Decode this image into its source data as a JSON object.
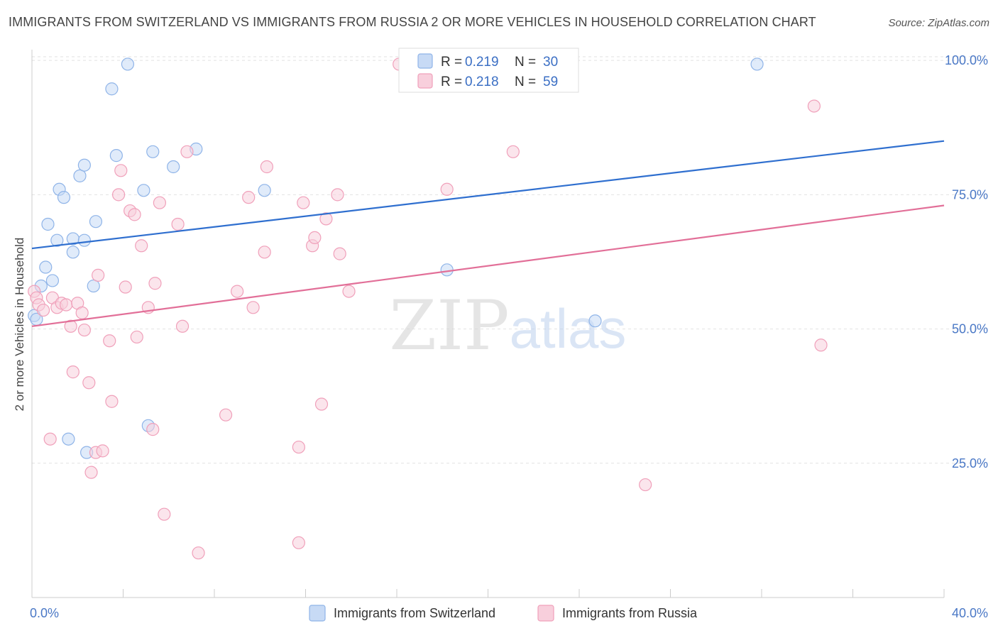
{
  "title": "IMMIGRANTS FROM SWITZERLAND VS IMMIGRANTS FROM RUSSIA 2 OR MORE VEHICLES IN HOUSEHOLD CORRELATION CHART",
  "source": "Source: ZipAtlas.com",
  "watermark": {
    "zip": "ZIP",
    "atlas": "atlas"
  },
  "chart_data": {
    "type": "scatter",
    "ylabel": "2 or more Vehicles in Household",
    "xlim": [
      0,
      40
    ],
    "ylim": [
      0,
      102
    ],
    "x_tick_labels": [
      {
        "value": 0,
        "label": "0.0%"
      },
      {
        "value": 40,
        "label": "40.0%"
      }
    ],
    "y_tick_labels": [
      {
        "value": 25,
        "label": "25.0%"
      },
      {
        "value": 50,
        "label": "50.0%"
      },
      {
        "value": 75,
        "label": "75.0%"
      },
      {
        "value": 100,
        "label": "100.0%"
      }
    ],
    "legend": {
      "entries": [
        {
          "r_label": "R = ",
          "r": "0.219",
          "n_label": "N = ",
          "n": "30",
          "color": "#8fb4e8",
          "fill": "#c7daf5"
        },
        {
          "r_label": "R = ",
          "r": "0.218",
          "n_label": "N = ",
          "n": "59",
          "color": "#f0a0ba",
          "fill": "#f8cfdc"
        }
      ]
    },
    "series": [
      {
        "name": "Immigrants from Switzerland",
        "color": "#8fb4e8",
        "fill": "#c7daf5",
        "line_color": "#2f6fcf",
        "trend": {
          "x0": 0,
          "y0": 65.0,
          "x1": 40,
          "y1": 85.0
        },
        "points": [
          [
            0.1,
            52.5
          ],
          [
            0.2,
            51.8
          ],
          [
            0.4,
            58.0
          ],
          [
            0.6,
            61.5
          ],
          [
            0.7,
            69.5
          ],
          [
            0.9,
            59.0
          ],
          [
            1.1,
            66.5
          ],
          [
            1.2,
            76.0
          ],
          [
            1.4,
            74.5
          ],
          [
            1.6,
            29.5
          ],
          [
            1.8,
            66.8
          ],
          [
            1.8,
            64.3
          ],
          [
            2.1,
            78.5
          ],
          [
            2.3,
            66.5
          ],
          [
            2.3,
            80.5
          ],
          [
            2.4,
            27.0
          ],
          [
            2.7,
            58.0
          ],
          [
            2.8,
            70.0
          ],
          [
            3.5,
            94.7
          ],
          [
            3.7,
            82.3
          ],
          [
            4.2,
            99.3
          ],
          [
            4.9,
            75.8
          ],
          [
            5.1,
            32.0
          ],
          [
            5.3,
            83.0
          ],
          [
            6.2,
            80.2
          ],
          [
            7.2,
            83.5
          ],
          [
            10.2,
            75.8
          ],
          [
            18.2,
            61.0
          ],
          [
            24.7,
            51.5
          ],
          [
            31.8,
            99.3
          ]
        ]
      },
      {
        "name": "Immigrants from Russia",
        "color": "#f0a0ba",
        "fill": "#f8cfdc",
        "line_color": "#e26f98",
        "trend": {
          "x0": 0,
          "y0": 50.5,
          "x1": 40,
          "y1": 73.0
        },
        "points": [
          [
            0.1,
            57.0
          ],
          [
            0.2,
            55.8
          ],
          [
            0.3,
            54.5
          ],
          [
            0.5,
            53.5
          ],
          [
            0.8,
            29.5
          ],
          [
            0.9,
            55.8
          ],
          [
            1.1,
            54.0
          ],
          [
            1.3,
            54.8
          ],
          [
            1.5,
            54.5
          ],
          [
            1.7,
            50.5
          ],
          [
            1.8,
            42.0
          ],
          [
            2.0,
            54.8
          ],
          [
            2.2,
            53.0
          ],
          [
            2.3,
            49.8
          ],
          [
            2.5,
            40.0
          ],
          [
            2.6,
            23.3
          ],
          [
            2.8,
            27.0
          ],
          [
            2.9,
            60.0
          ],
          [
            3.1,
            27.3
          ],
          [
            3.4,
            47.8
          ],
          [
            3.5,
            36.5
          ],
          [
            3.8,
            75.0
          ],
          [
            3.9,
            79.5
          ],
          [
            4.1,
            57.8
          ],
          [
            4.3,
            72.0
          ],
          [
            4.5,
            71.3
          ],
          [
            4.6,
            48.5
          ],
          [
            4.8,
            65.5
          ],
          [
            5.1,
            54.0
          ],
          [
            5.3,
            31.3
          ],
          [
            5.4,
            58.5
          ],
          [
            5.6,
            73.5
          ],
          [
            5.8,
            15.5
          ],
          [
            6.4,
            69.5
          ],
          [
            6.6,
            50.5
          ],
          [
            6.8,
            83.0
          ],
          [
            7.3,
            8.3
          ],
          [
            8.5,
            34.0
          ],
          [
            9.0,
            57.0
          ],
          [
            9.5,
            74.5
          ],
          [
            9.7,
            54.0
          ],
          [
            10.2,
            64.3
          ],
          [
            10.3,
            80.2
          ],
          [
            11.7,
            28.0
          ],
          [
            11.7,
            10.2
          ],
          [
            11.9,
            73.5
          ],
          [
            12.3,
            65.5
          ],
          [
            12.4,
            67.0
          ],
          [
            12.7,
            36.0
          ],
          [
            12.9,
            70.5
          ],
          [
            13.4,
            75.0
          ],
          [
            13.5,
            64.0
          ],
          [
            13.9,
            57.0
          ],
          [
            16.1,
            99.3
          ],
          [
            18.2,
            76.0
          ],
          [
            21.1,
            83.0
          ],
          [
            26.9,
            21.0
          ],
          [
            34.3,
            91.5
          ],
          [
            34.6,
            47.0
          ]
        ]
      }
    ]
  }
}
